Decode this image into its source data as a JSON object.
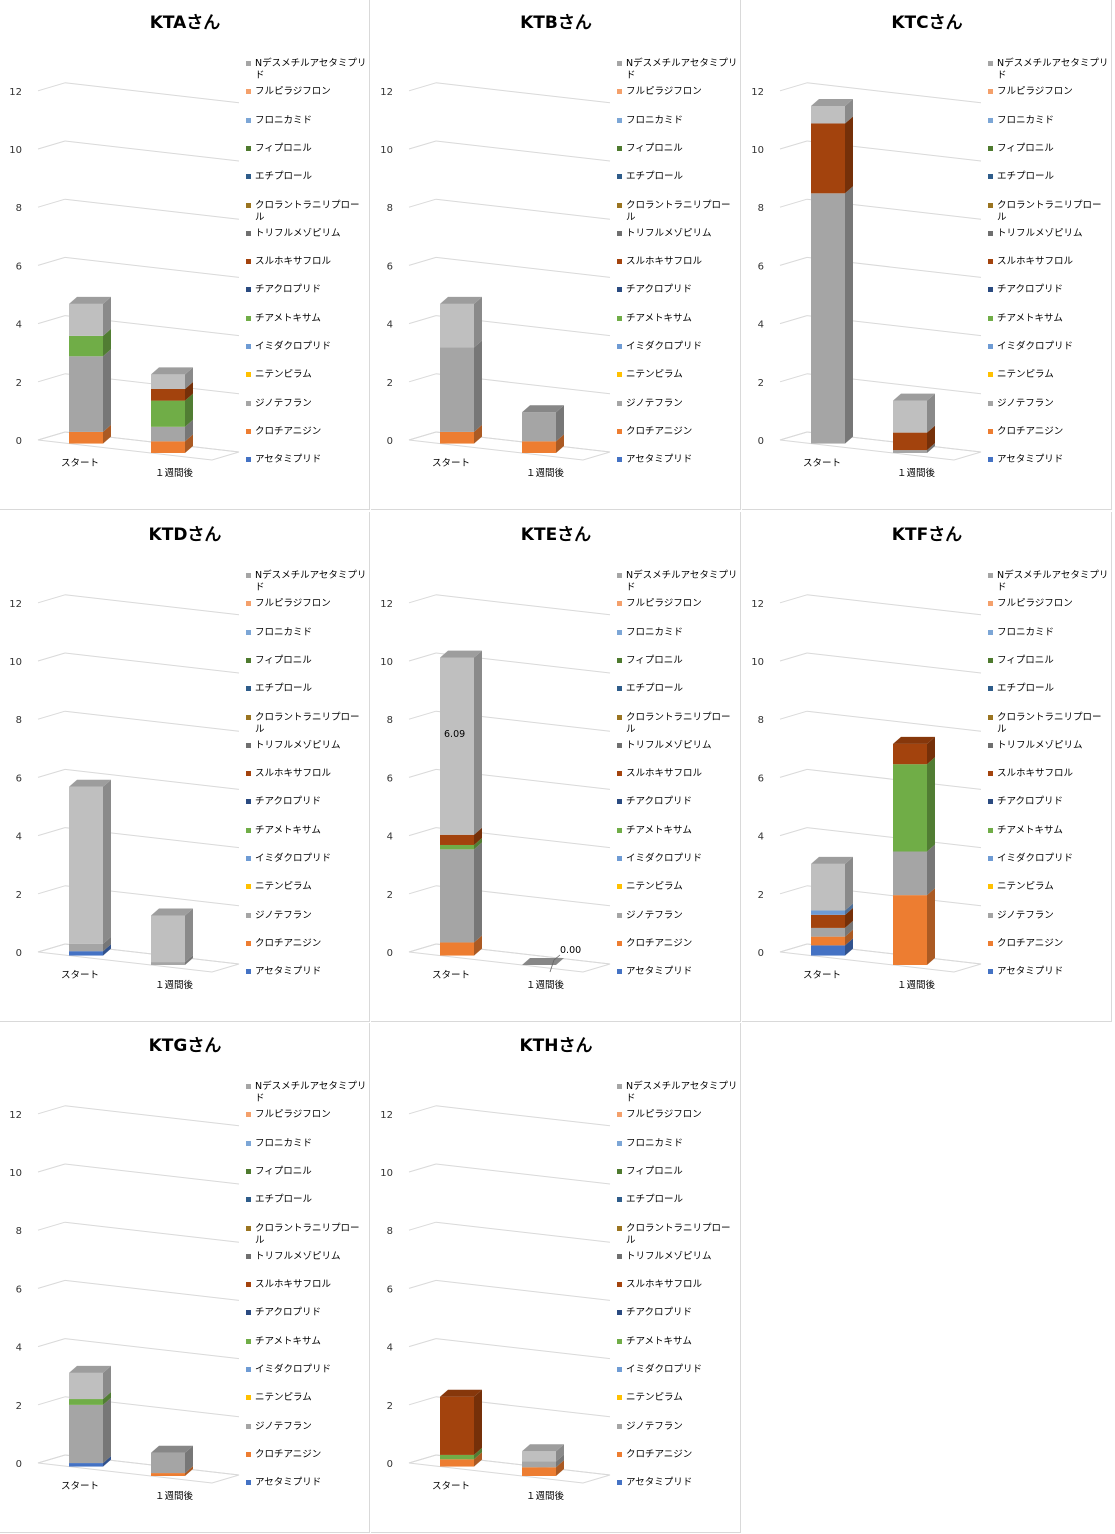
{
  "legend": [
    {
      "label": "Nデスメチルアセタミプリド",
      "color": "#A5A5A5"
    },
    {
      "label": "フルピラジフロン",
      "color": "#F4A06B"
    },
    {
      "label": "フロニカミド",
      "color": "#7CA6D6"
    },
    {
      "label": "フィプロニル",
      "color": "#4E7A2E"
    },
    {
      "label": "エチプロール",
      "color": "#2E5C8A"
    },
    {
      "label": "クロラントラニリプロール",
      "color": "#9A7420"
    },
    {
      "label": "トリフルメゾピリム",
      "color": "#6F6F6F"
    },
    {
      "label": "スルホキサフロル",
      "color": "#A3430D"
    },
    {
      "label": "チアクロプリド",
      "color": "#2A4A80"
    },
    {
      "label": "チアメトキサム",
      "color": "#70AD47"
    },
    {
      "label": "イミダクロプリド",
      "color": "#6E9BD4"
    },
    {
      "label": "ニテンピラム",
      "color": "#FFC000"
    },
    {
      "label": "ジノテフラン",
      "color": "#A5A5A5"
    },
    {
      "label": "クロチアニジン",
      "color": "#ED7D31"
    },
    {
      "label": "アセタミプリド",
      "color": "#4472C4"
    }
  ],
  "chart_data": [
    {
      "type": "bar",
      "title": "KTAさん",
      "categories": [
        "スタート",
        "１週間後"
      ],
      "ylim": [
        0,
        12
      ],
      "yticks": [
        "0",
        "2",
        "4",
        "6",
        "8",
        "10",
        "12"
      ],
      "stacks": [
        [
          {
            "series": "クロチアニジン",
            "value": 0.4,
            "color": "#ED7D31"
          },
          {
            "series": "ジノテフラン",
            "value": 2.6,
            "color": "#A5A5A5"
          },
          {
            "series": "チアメトキサム",
            "value": 0.7,
            "color": "#70AD47"
          },
          {
            "series": "Nデスメチルアセタミプリド",
            "value": 1.1,
            "color": "#BFBFBF"
          }
        ],
        [
          {
            "series": "クロチアニジン",
            "value": 0.4,
            "color": "#ED7D31"
          },
          {
            "series": "ジノテフラン",
            "value": 0.5,
            "color": "#A5A5A5"
          },
          {
            "series": "チアメトキサム",
            "value": 0.9,
            "color": "#70AD47"
          },
          {
            "series": "スルホキサフロル",
            "value": 0.4,
            "color": "#A3430D"
          },
          {
            "series": "Nデスメチルアセタミプリド",
            "value": 0.5,
            "color": "#BFBFBF"
          }
        ]
      ],
      "labels": []
    },
    {
      "type": "bar",
      "title": "KTBさん",
      "categories": [
        "スタート",
        "１週間後"
      ],
      "ylim": [
        0,
        12
      ],
      "yticks": [
        "0",
        "2",
        "4",
        "6",
        "8",
        "10",
        "12"
      ],
      "stacks": [
        [
          {
            "series": "クロチアニジン",
            "value": 0.4,
            "color": "#ED7D31"
          },
          {
            "series": "ジノテフラン",
            "value": 2.9,
            "color": "#A5A5A5"
          },
          {
            "series": "Nデスメチルアセタミプリド",
            "value": 1.5,
            "color": "#BFBFBF"
          }
        ],
        [
          {
            "series": "クロチアニジン",
            "value": 0.4,
            "color": "#ED7D31"
          },
          {
            "series": "ジノテフラン",
            "value": 1.0,
            "color": "#A5A5A5"
          }
        ]
      ],
      "labels": []
    },
    {
      "type": "bar",
      "title": "KTCさん",
      "categories": [
        "スタート",
        "１週間後"
      ],
      "ylim": [
        0,
        12
      ],
      "yticks": [
        "0",
        "2",
        "4",
        "6",
        "8",
        "10",
        "12"
      ],
      "stacks": [
        [
          {
            "series": "ジノテフラン",
            "value": 8.6,
            "color": "#A5A5A5"
          },
          {
            "series": "スルホキサフロル",
            "value": 2.4,
            "color": "#A3430D"
          },
          {
            "series": "Nデスメチルアセタミプリド",
            "value": 0.6,
            "color": "#BFBFBF"
          }
        ],
        [
          {
            "series": "ジノテフラン",
            "value": 0.1,
            "color": "#A5A5A5"
          },
          {
            "series": "スルホキサフロル",
            "value": 0.6,
            "color": "#A3430D"
          },
          {
            "series": "Nデスメチルアセタミプリド",
            "value": 1.1,
            "color": "#BFBFBF"
          }
        ]
      ],
      "labels": []
    },
    {
      "type": "bar",
      "title": "KTDさん",
      "categories": [
        "スタート",
        "１週間後"
      ],
      "ylim": [
        0,
        12
      ],
      "yticks": [
        "0",
        "2",
        "4",
        "6",
        "8",
        "10",
        "12"
      ],
      "stacks": [
        [
          {
            "series": "アセタミプリド",
            "value": 0.15,
            "color": "#4472C4"
          },
          {
            "series": "ジノテフラン",
            "value": 0.25,
            "color": "#A5A5A5"
          },
          {
            "series": "Nデスメチルアセタミプリド",
            "value": 5.4,
            "color": "#BFBFBF"
          }
        ],
        [
          {
            "series": "ジノテフラン",
            "value": 0.1,
            "color": "#A5A5A5"
          },
          {
            "series": "Nデスメチルアセタミプリド",
            "value": 1.6,
            "color": "#BFBFBF"
          }
        ]
      ],
      "labels": []
    },
    {
      "type": "bar",
      "title": "KTEさん",
      "categories": [
        "スタート",
        "１週間後"
      ],
      "ylim": [
        0,
        12
      ],
      "yticks": [
        "0",
        "2",
        "4",
        "6",
        "8",
        "10",
        "12"
      ],
      "stacks": [
        [
          {
            "series": "クロチアニジン",
            "value": 0.45,
            "color": "#ED7D31"
          },
          {
            "series": "ジノテフラン",
            "value": 3.2,
            "color": "#A5A5A5"
          },
          {
            "series": "チアメトキサム",
            "value": 0.15,
            "color": "#70AD47"
          },
          {
            "series": "スルホキサフロル",
            "value": 0.35,
            "color": "#A3430D"
          },
          {
            "series": "Nデスメチルアセタミプリド",
            "value": 6.09,
            "color": "#BFBFBF"
          }
        ],
        [
          {
            "series": "ジノテフラン",
            "value": 0.0,
            "color": "#A5A5A5"
          }
        ]
      ],
      "labels": [
        "6.09",
        "0.00"
      ]
    },
    {
      "type": "bar",
      "title": "KTFさん",
      "categories": [
        "スタート",
        "１週間後"
      ],
      "ylim": [
        0,
        12
      ],
      "yticks": [
        "0",
        "2",
        "4",
        "6",
        "8",
        "10",
        "12"
      ],
      "stacks": [
        [
          {
            "series": "アセタミプリド",
            "value": 0.35,
            "color": "#4472C4"
          },
          {
            "series": "クロチアニジン",
            "value": 0.3,
            "color": "#ED7D31"
          },
          {
            "series": "ジノテフラン",
            "value": 0.3,
            "color": "#A5A5A5"
          },
          {
            "series": "スルホキサフロル",
            "value": 0.45,
            "color": "#A3430D"
          },
          {
            "series": "イミダクロプリド",
            "value": 0.15,
            "color": "#6E9BD4"
          },
          {
            "series": "Nデスメチルアセタミプリド",
            "value": 1.6,
            "color": "#BFBFBF"
          }
        ],
        [
          {
            "series": "クロチアニジン",
            "value": 2.4,
            "color": "#ED7D31"
          },
          {
            "series": "ジノテフラン",
            "value": 1.5,
            "color": "#A5A5A5"
          },
          {
            "series": "チアメトキサム",
            "value": 3.0,
            "color": "#70AD47"
          },
          {
            "series": "スルホキサフロル",
            "value": 0.7,
            "color": "#A3430D"
          }
        ]
      ],
      "labels": []
    },
    {
      "type": "bar",
      "title": "KTGさん",
      "categories": [
        "スタート",
        "１週間後"
      ],
      "ylim": [
        0,
        12
      ],
      "yticks": [
        "0",
        "2",
        "4",
        "6",
        "8",
        "10",
        "12"
      ],
      "stacks": [
        [
          {
            "series": "アセタミプリド",
            "value": 0.12,
            "color": "#4472C4"
          },
          {
            "series": "ジノテフラン",
            "value": 2.0,
            "color": "#A5A5A5"
          },
          {
            "series": "チアメトキサム",
            "value": 0.2,
            "color": "#70AD47"
          },
          {
            "series": "Nデスメチルアセタミプリド",
            "value": 0.9,
            "color": "#BFBFBF"
          }
        ],
        [
          {
            "series": "クロチアニジン",
            "value": 0.1,
            "color": "#ED7D31"
          },
          {
            "series": "ジノテフラン",
            "value": 0.7,
            "color": "#A5A5A5"
          }
        ]
      ],
      "labels": []
    },
    {
      "type": "bar",
      "title": "KTHさん",
      "categories": [
        "スタート",
        "１週間後"
      ],
      "ylim": [
        0,
        12
      ],
      "yticks": [
        "0",
        "2",
        "4",
        "6",
        "8",
        "10",
        "12"
      ],
      "stacks": [
        [
          {
            "series": "クロチアニジン",
            "value": 0.25,
            "color": "#ED7D31"
          },
          {
            "series": "チアメトキサム",
            "value": 0.15,
            "color": "#70AD47"
          },
          {
            "series": "スルホキサフロル",
            "value": 2.0,
            "color": "#A3430D"
          }
        ],
        [
          {
            "series": "クロチアニジン",
            "value": 0.3,
            "color": "#ED7D31"
          },
          {
            "series": "ジノテフラン",
            "value": 0.2,
            "color": "#A5A5A5"
          },
          {
            "series": "Nデスメチルアセタミプリド",
            "value": 0.35,
            "color": "#BFBFBF"
          }
        ]
      ],
      "labels": []
    }
  ]
}
